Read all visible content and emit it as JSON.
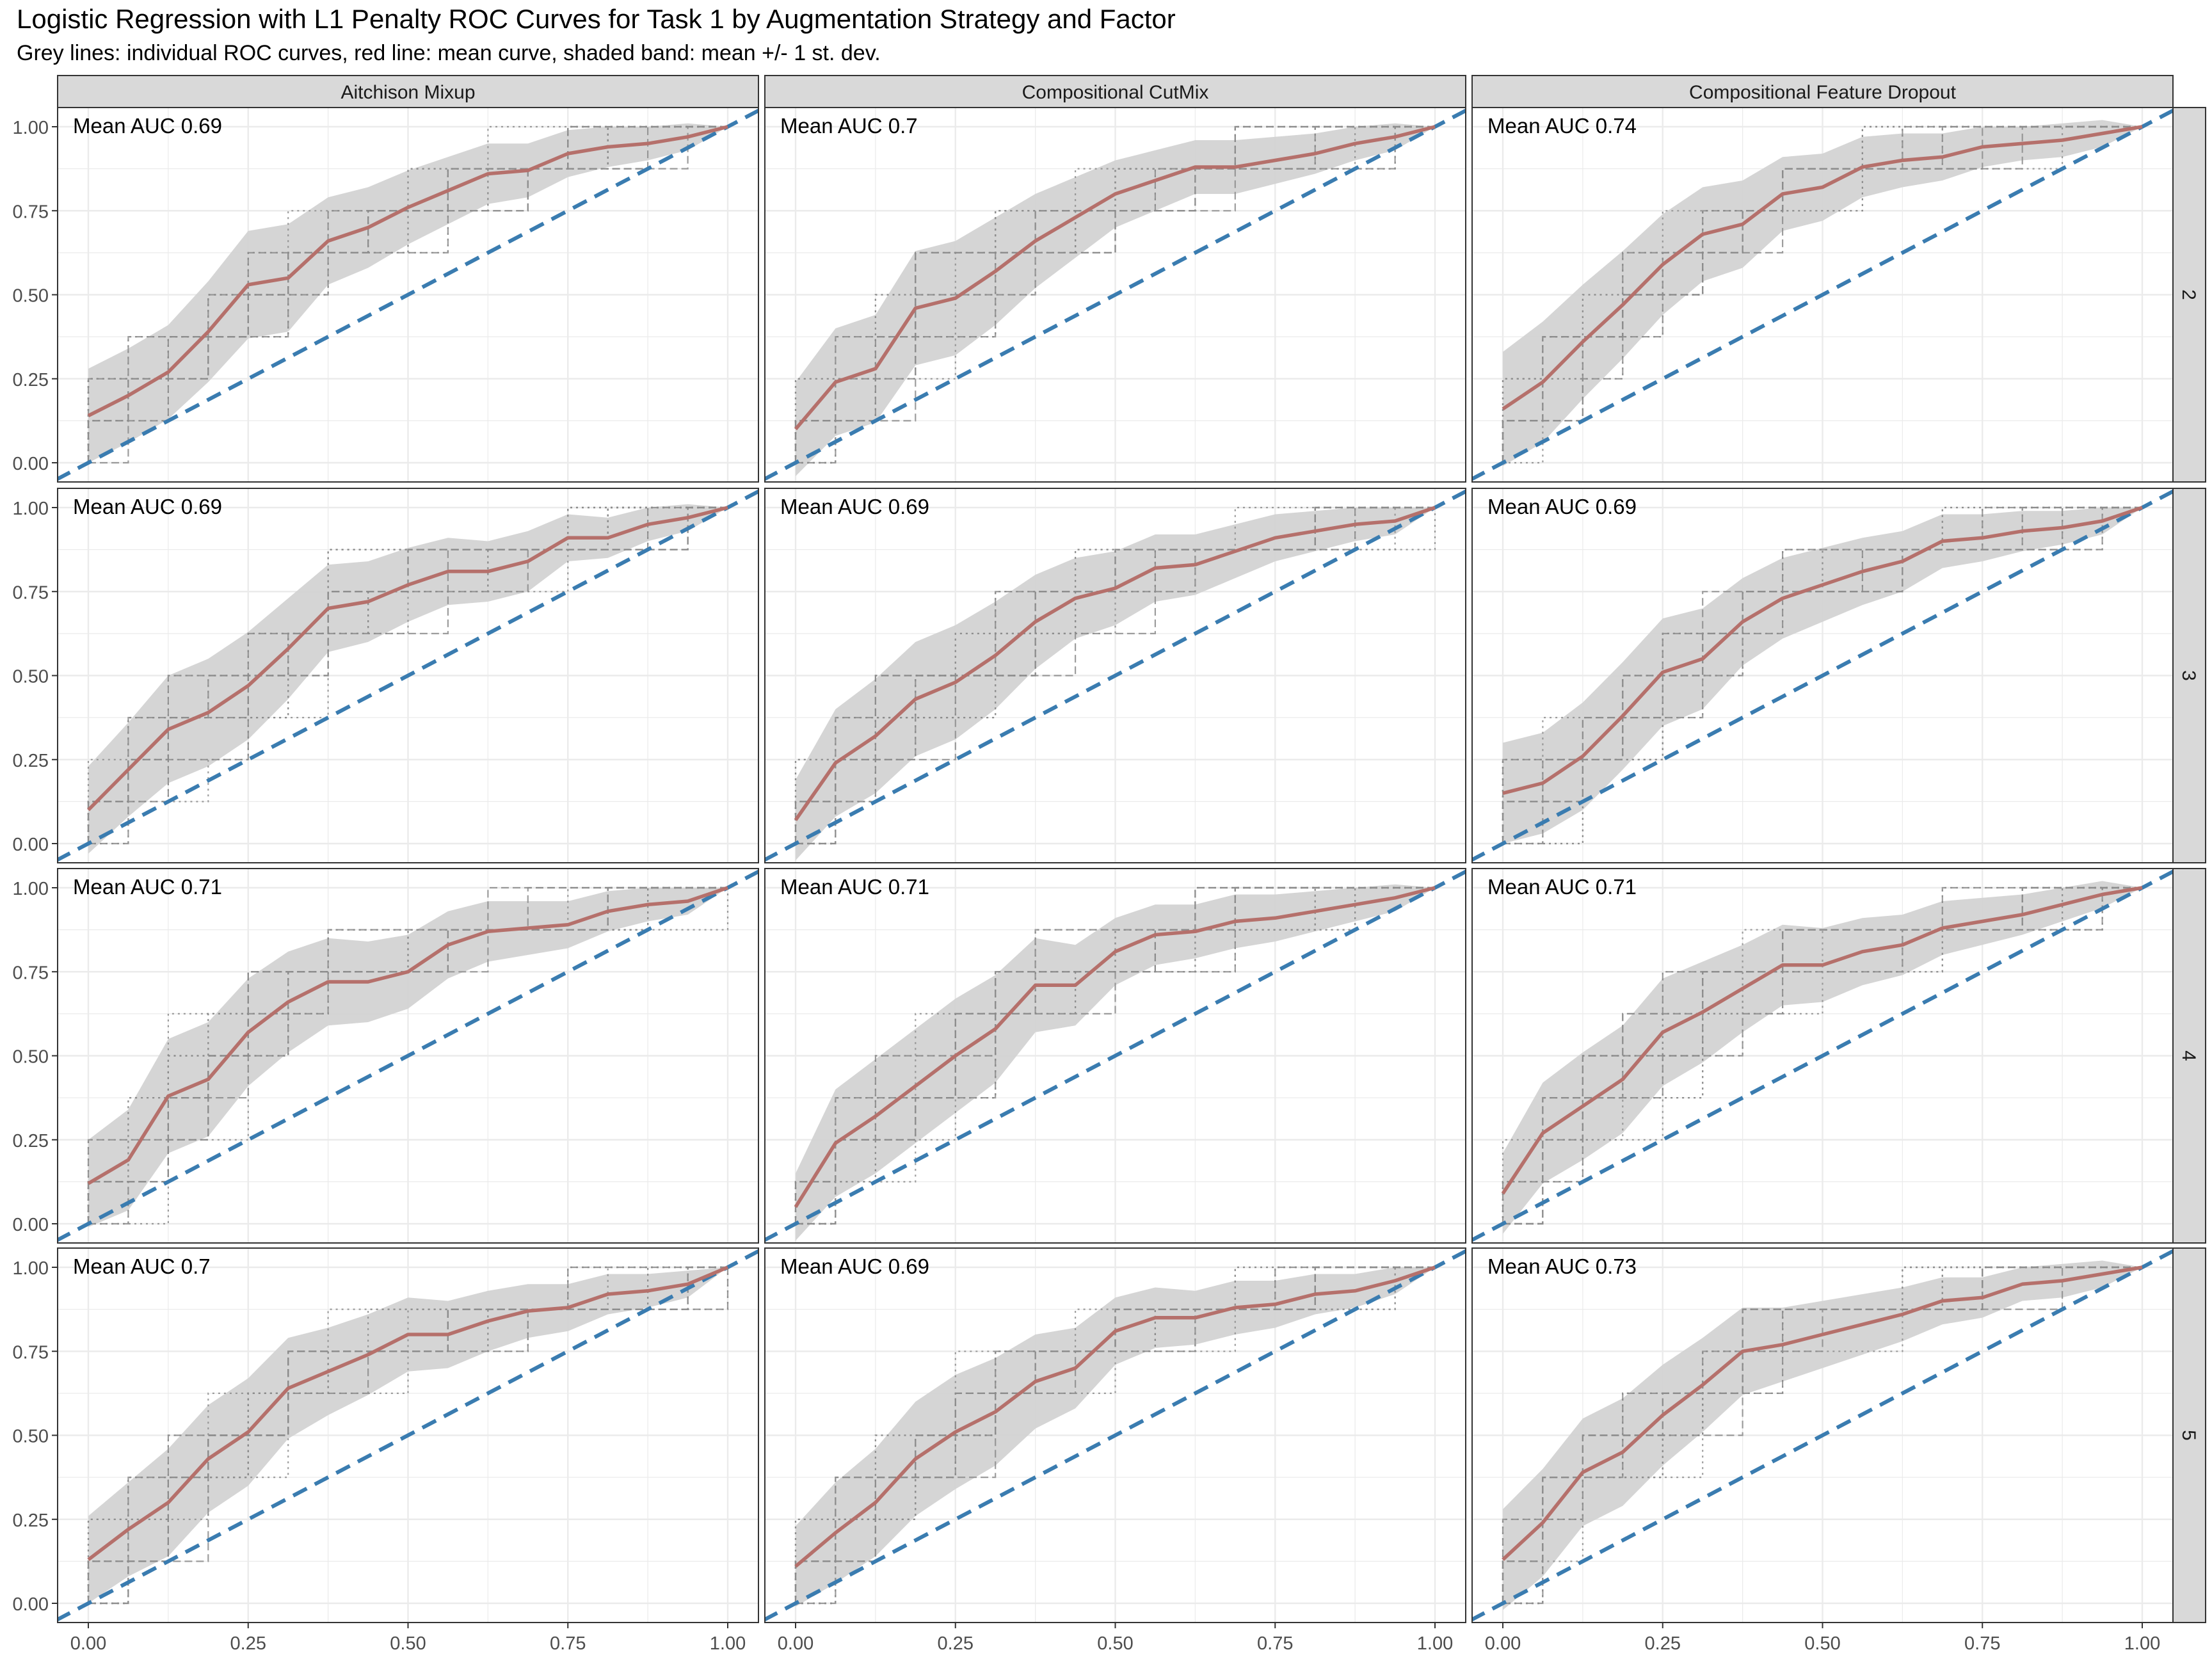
{
  "title": "Logistic Regression with L1 Penalty ROC Curves for Task 1 by Augmentation Strategy and Factor",
  "subtitle": "Grey lines: individual ROC curves, red line: mean curve, shaded band: mean +/- 1 st. dev.",
  "colors": {
    "mean_line": "#b5706b",
    "band": "#d3d3d3",
    "individual_lines": "#8c8c8c",
    "diagonal": "#3a7cb0",
    "strip_bg": "#d9d9d9",
    "grid": "#ebebeb"
  },
  "chart_data": {
    "type": "line",
    "facet_columns": [
      "Aitchison Mixup",
      "Compositional CutMix",
      "Compositional Feature Dropout"
    ],
    "facet_rows": [
      "2",
      "3",
      "4",
      "5"
    ],
    "x_ticks": [
      "0.00",
      "0.25",
      "0.50",
      "0.75",
      "1.00"
    ],
    "y_ticks": [
      "0.00",
      "0.25",
      "0.50",
      "0.75",
      "1.00"
    ],
    "xlim": [
      0,
      1
    ],
    "ylim": [
      0,
      1
    ],
    "grid": true,
    "fpr": [
      0,
      0.0625,
      0.125,
      0.1875,
      0.25,
      0.3125,
      0.375,
      0.4375,
      0.5,
      0.5625,
      0.625,
      0.6875,
      0.75,
      0.8125,
      0.875,
      0.9375,
      1
    ],
    "panels": [
      {
        "column": "Aitchison Mixup",
        "row": "2",
        "auc_label": "Mean AUC 0.69",
        "mean_tpr": [
          0.14,
          0.2,
          0.27,
          0.39,
          0.53,
          0.55,
          0.66,
          0.7,
          0.76,
          0.81,
          0.86,
          0.87,
          0.92,
          0.94,
          0.95,
          0.97,
          1.0
        ],
        "sd": [
          0.14,
          0.14,
          0.14,
          0.15,
          0.16,
          0.16,
          0.13,
          0.12,
          0.11,
          0.1,
          0.09,
          0.08,
          0.07,
          0.06,
          0.05,
          0.04,
          0.0
        ]
      },
      {
        "column": "Compositional CutMix",
        "row": "2",
        "auc_label": "Mean AUC 0.7",
        "mean_tpr": [
          0.1,
          0.24,
          0.28,
          0.46,
          0.49,
          0.57,
          0.66,
          0.73,
          0.8,
          0.84,
          0.88,
          0.88,
          0.9,
          0.92,
          0.95,
          0.97,
          1.0
        ],
        "sd": [
          0.14,
          0.16,
          0.16,
          0.17,
          0.17,
          0.16,
          0.14,
          0.12,
          0.1,
          0.09,
          0.08,
          0.08,
          0.07,
          0.06,
          0.05,
          0.04,
          0.0
        ]
      },
      {
        "column": "Compositional Feature Dropout",
        "row": "2",
        "auc_label": "Mean AUC 0.74",
        "mean_tpr": [
          0.16,
          0.24,
          0.36,
          0.47,
          0.59,
          0.68,
          0.71,
          0.8,
          0.82,
          0.88,
          0.9,
          0.91,
          0.94,
          0.95,
          0.96,
          0.98,
          1.0
        ],
        "sd": [
          0.17,
          0.18,
          0.17,
          0.16,
          0.15,
          0.14,
          0.13,
          0.11,
          0.1,
          0.09,
          0.08,
          0.07,
          0.06,
          0.05,
          0.05,
          0.04,
          0.0
        ]
      },
      {
        "column": "Aitchison Mixup",
        "row": "3",
        "auc_label": "Mean AUC 0.69",
        "mean_tpr": [
          0.1,
          0.22,
          0.34,
          0.39,
          0.47,
          0.58,
          0.7,
          0.72,
          0.77,
          0.81,
          0.81,
          0.84,
          0.91,
          0.91,
          0.95,
          0.97,
          1.0
        ],
        "sd": [
          0.13,
          0.14,
          0.16,
          0.16,
          0.16,
          0.15,
          0.13,
          0.12,
          0.11,
          0.1,
          0.09,
          0.09,
          0.07,
          0.06,
          0.05,
          0.04,
          0.0
        ]
      },
      {
        "column": "Compositional CutMix",
        "row": "3",
        "auc_label": "Mean AUC 0.69",
        "mean_tpr": [
          0.07,
          0.24,
          0.32,
          0.43,
          0.48,
          0.56,
          0.66,
          0.73,
          0.76,
          0.82,
          0.83,
          0.87,
          0.91,
          0.93,
          0.95,
          0.96,
          1.0
        ],
        "sd": [
          0.12,
          0.16,
          0.17,
          0.17,
          0.17,
          0.16,
          0.14,
          0.12,
          0.11,
          0.1,
          0.09,
          0.08,
          0.07,
          0.06,
          0.05,
          0.04,
          0.0
        ]
      },
      {
        "column": "Compositional Feature Dropout",
        "row": "3",
        "auc_label": "Mean AUC 0.69",
        "mean_tpr": [
          0.15,
          0.18,
          0.26,
          0.38,
          0.51,
          0.55,
          0.66,
          0.73,
          0.77,
          0.81,
          0.84,
          0.9,
          0.91,
          0.93,
          0.94,
          0.96,
          1.0
        ],
        "sd": [
          0.15,
          0.15,
          0.16,
          0.16,
          0.16,
          0.15,
          0.13,
          0.12,
          0.11,
          0.1,
          0.09,
          0.08,
          0.07,
          0.06,
          0.05,
          0.04,
          0.0
        ]
      },
      {
        "column": "Aitchison Mixup",
        "row": "4",
        "auc_label": "Mean AUC 0.71",
        "mean_tpr": [
          0.12,
          0.19,
          0.38,
          0.43,
          0.57,
          0.66,
          0.72,
          0.72,
          0.75,
          0.83,
          0.87,
          0.88,
          0.89,
          0.93,
          0.95,
          0.96,
          1.0
        ],
        "sd": [
          0.13,
          0.15,
          0.17,
          0.17,
          0.16,
          0.15,
          0.13,
          0.12,
          0.11,
          0.1,
          0.09,
          0.08,
          0.07,
          0.06,
          0.05,
          0.04,
          0.0
        ]
      },
      {
        "column": "Compositional CutMix",
        "row": "4",
        "auc_label": "Mean AUC 0.71",
        "mean_tpr": [
          0.05,
          0.24,
          0.32,
          0.41,
          0.5,
          0.58,
          0.71,
          0.71,
          0.81,
          0.86,
          0.87,
          0.9,
          0.91,
          0.93,
          0.95,
          0.97,
          1.0
        ],
        "sd": [
          0.1,
          0.16,
          0.17,
          0.17,
          0.17,
          0.16,
          0.14,
          0.12,
          0.1,
          0.09,
          0.08,
          0.08,
          0.07,
          0.06,
          0.05,
          0.04,
          0.0
        ]
      },
      {
        "column": "Compositional Feature Dropout",
        "row": "4",
        "auc_label": "Mean AUC 0.71",
        "mean_tpr": [
          0.09,
          0.27,
          0.35,
          0.43,
          0.57,
          0.63,
          0.7,
          0.77,
          0.77,
          0.81,
          0.83,
          0.88,
          0.9,
          0.92,
          0.95,
          0.98,
          1.0
        ],
        "sd": [
          0.12,
          0.15,
          0.16,
          0.16,
          0.16,
          0.15,
          0.13,
          0.12,
          0.11,
          0.1,
          0.09,
          0.08,
          0.07,
          0.06,
          0.05,
          0.04,
          0.0
        ]
      },
      {
        "column": "Aitchison Mixup",
        "row": "5",
        "auc_label": "Mean AUC 0.7",
        "mean_tpr": [
          0.13,
          0.22,
          0.3,
          0.43,
          0.51,
          0.64,
          0.69,
          0.74,
          0.8,
          0.8,
          0.84,
          0.87,
          0.88,
          0.92,
          0.93,
          0.95,
          1.0
        ],
        "sd": [
          0.13,
          0.14,
          0.16,
          0.16,
          0.16,
          0.15,
          0.13,
          0.12,
          0.11,
          0.1,
          0.09,
          0.08,
          0.07,
          0.06,
          0.05,
          0.04,
          0.0
        ]
      },
      {
        "column": "Compositional CutMix",
        "row": "5",
        "auc_label": "Mean AUC 0.69",
        "mean_tpr": [
          0.11,
          0.21,
          0.3,
          0.43,
          0.51,
          0.57,
          0.66,
          0.7,
          0.81,
          0.85,
          0.85,
          0.88,
          0.89,
          0.92,
          0.93,
          0.96,
          1.0
        ],
        "sd": [
          0.12,
          0.15,
          0.16,
          0.17,
          0.17,
          0.16,
          0.14,
          0.12,
          0.1,
          0.09,
          0.08,
          0.08,
          0.07,
          0.06,
          0.05,
          0.04,
          0.0
        ]
      },
      {
        "column": "Compositional Feature Dropout",
        "row": "5",
        "auc_label": "Mean AUC 0.73",
        "mean_tpr": [
          0.13,
          0.24,
          0.39,
          0.45,
          0.56,
          0.65,
          0.75,
          0.77,
          0.8,
          0.83,
          0.86,
          0.9,
          0.91,
          0.95,
          0.96,
          0.98,
          1.0
        ],
        "sd": [
          0.15,
          0.16,
          0.16,
          0.16,
          0.15,
          0.14,
          0.13,
          0.11,
          0.1,
          0.09,
          0.08,
          0.07,
          0.06,
          0.05,
          0.05,
          0.04,
          0.0
        ]
      }
    ]
  }
}
